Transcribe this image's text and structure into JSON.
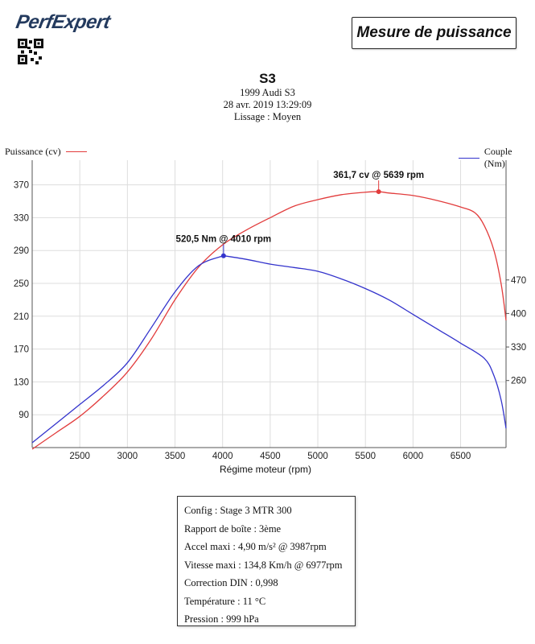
{
  "brand": {
    "logo_text": "PerfExpert"
  },
  "report_title": "Mesure de puissance",
  "vehicle": {
    "name": "S3",
    "model": "1999 Audi S3",
    "date": "28 avr. 2019 13:29:09",
    "smoothing": "Lissage : Moyen"
  },
  "colors": {
    "power": "#e23c3c",
    "torque": "#3333cc",
    "grid": "#dddddd",
    "axis": "#555555"
  },
  "chart_data": {
    "type": "line",
    "xlabel": "Régime moteur (rpm)",
    "xlim": [
      2000,
      6977
    ],
    "x_ticks": [
      2500,
      3000,
      3500,
      4000,
      4500,
      5000,
      5500,
      6000,
      6500
    ],
    "y_left": {
      "label": "Puissance (cv)",
      "ylim": [
        50,
        400
      ],
      "ticks": [
        90,
        130,
        170,
        210,
        250,
        290,
        330,
        370
      ]
    },
    "y_right": {
      "label": "Couple (Nm)",
      "ylim": [
        120,
        720
      ],
      "ticks": [
        260,
        330,
        400,
        470
      ]
    },
    "series": [
      {
        "name": "Puissance (cv)",
        "axis": "left",
        "x": [
          2000,
          2250,
          2500,
          2750,
          3000,
          3250,
          3500,
          3750,
          4000,
          4250,
          4500,
          4750,
          5000,
          5250,
          5500,
          5639,
          5750,
          6000,
          6250,
          6500,
          6650,
          6750,
          6850,
          6925,
          6977
        ],
        "values": [
          48,
          68,
          88,
          113,
          142,
          182,
          230,
          270,
          297,
          315,
          330,
          344,
          352,
          358,
          361,
          361.7,
          360,
          357,
          351,
          343,
          336,
          320,
          290,
          250,
          205
        ]
      },
      {
        "name": "Couple (Nm)",
        "axis": "right",
        "x": [
          2000,
          2250,
          2500,
          2750,
          3000,
          3250,
          3500,
          3750,
          4000,
          4010,
          4250,
          4500,
          4750,
          5000,
          5250,
          5500,
          5750,
          6000,
          6250,
          6500,
          6750,
          6850,
          6925,
          6977
        ],
        "values": [
          130,
          170,
          210,
          250,
          297,
          370,
          445,
          500,
          520,
          520.5,
          513,
          503,
          496,
          488,
          472,
          452,
          428,
          398,
          368,
          338,
          306,
          270,
          220,
          160
        ]
      }
    ],
    "annotations": [
      {
        "series": "Puissance (cv)",
        "x": 5639,
        "y": 361.7,
        "label": "361,7 cv @ 5639 rpm"
      },
      {
        "series": "Couple (Nm)",
        "x": 4010,
        "y": 520.5,
        "label": "520,5 Nm @ 4010 rpm"
      }
    ]
  },
  "info": [
    "Config : Stage 3 MTR 300",
    "Rapport de boîte : 3ème",
    "Accel maxi : 4,90 m/s² @ 3987rpm",
    "Vitesse maxi : 134,8 Km/h @ 6977rpm",
    "Correction DIN : 0,998",
    "Température : 11 °C",
    "Pression : 999 hPa"
  ]
}
